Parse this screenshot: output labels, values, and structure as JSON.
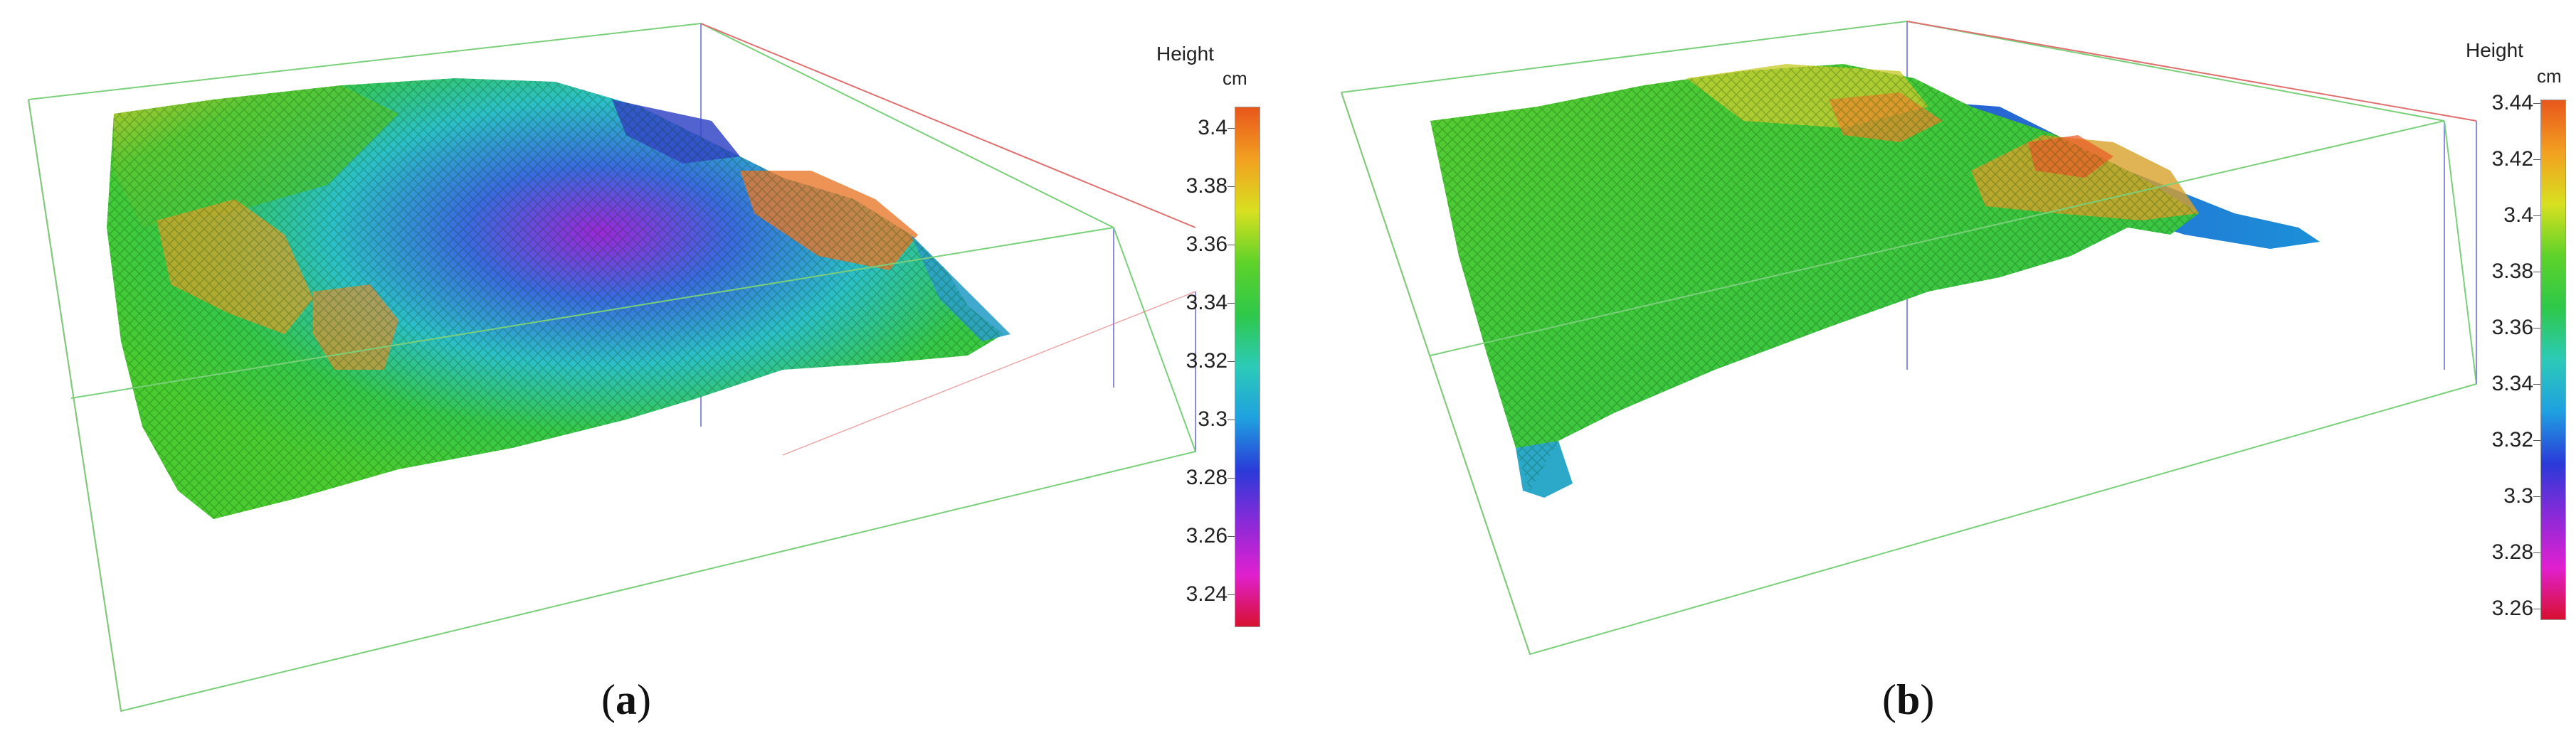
{
  "panels": [
    {
      "label_open": "(",
      "label_letter": "a",
      "label_close": ")",
      "colorbar": {
        "title": "Height",
        "unit": "cm",
        "ticks": [
          "3.4",
          "3.38",
          "3.36",
          "3.34",
          "3.32",
          "3.3",
          "3.28",
          "3.26",
          "3.24"
        ],
        "gradient_stops": [
          "#e8561c",
          "#f2a020",
          "#d8e020",
          "#5ed22a",
          "#2ec84a",
          "#2ccab8",
          "#1fa0e0",
          "#2a3ad8",
          "#8a2ad8",
          "#e020d0",
          "#d81030"
        ]
      }
    },
    {
      "label_open": "(",
      "label_letter": "b",
      "label_close": ")",
      "colorbar": {
        "title": "Height",
        "unit": "cm",
        "ticks": [
          "3.44",
          "3.42",
          "3.4",
          "3.38",
          "3.36",
          "3.34",
          "3.32",
          "3.3",
          "3.28",
          "3.26"
        ],
        "gradient_stops": [
          "#e8561c",
          "#f2a020",
          "#d8e020",
          "#5ed22a",
          "#2ec84a",
          "#2ccab8",
          "#1fa0e0",
          "#2a3ad8",
          "#8a2ad8",
          "#e020d0",
          "#d81030"
        ]
      }
    }
  ]
}
